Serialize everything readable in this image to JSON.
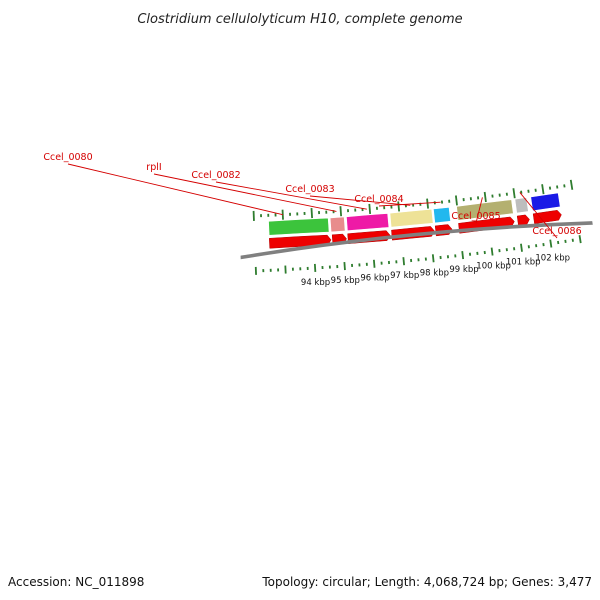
{
  "title": "Clostridium cellulolyticum H10, complete genome",
  "footer": {
    "accession": "Accession: NC_011898",
    "summary": "Topology: circular; Length: 4,068,724 bp; Genes: 3,477"
  },
  "colors": {
    "backbone": "#808080",
    "tick": "#2f7d2f",
    "cds": "#ee0000",
    "label": "#d40000"
  },
  "genes": [
    {
      "label": "",
      "start": 92.5,
      "end": 94.55,
      "color": "#3cc43c"
    },
    {
      "label": "rplI",
      "start": 94.62,
      "end": 95.1,
      "color": "#e88c8c"
    },
    {
      "label": "Ccel_0080",
      "start": 93.0,
      "end": 93.1,
      "color": "",
      "labelOnly": true
    },
    {
      "label": "Ccel_0082",
      "start": 95.18,
      "end": 96.6,
      "color": "#ee1aa6"
    },
    {
      "label": "Ccel_0083",
      "start": 96.68,
      "end": 98.12,
      "color": "#eee297"
    },
    {
      "label": "Ccel_0084",
      "start": 98.18,
      "end": 98.72,
      "color": "#22b8ee"
    },
    {
      "label": "Ccel_0085",
      "start": 98.98,
      "end": 100.88,
      "color": "#b4b070"
    },
    {
      "label": "Ccel_0086",
      "start": 101.0,
      "end": 101.4,
      "color": "#bdbdbd"
    },
    {
      "label": "",
      "start": 101.55,
      "end": 102.5,
      "color": "#1a1ae6"
    }
  ],
  "cds": [
    {
      "start": 92.5,
      "end": 94.6
    },
    {
      "start": 94.65,
      "end": 95.13
    },
    {
      "start": 95.18,
      "end": 96.62
    },
    {
      "start": 96.68,
      "end": 98.14
    },
    {
      "start": 98.18,
      "end": 98.74
    },
    {
      "start": 98.98,
      "end": 100.88
    },
    {
      "start": 101.0,
      "end": 101.4
    },
    {
      "start": 101.55,
      "end": 102.5
    }
  ],
  "kbp_labels": [
    "94 kbp",
    "95 kbp",
    "96 kbp",
    "97 kbp",
    "98 kbp",
    "99 kbp",
    "100 kbp",
    "101 kbp",
    "102 kbp"
  ],
  "kbp_values": [
    94,
    95,
    96,
    97,
    98,
    99,
    100,
    101,
    102
  ]
}
